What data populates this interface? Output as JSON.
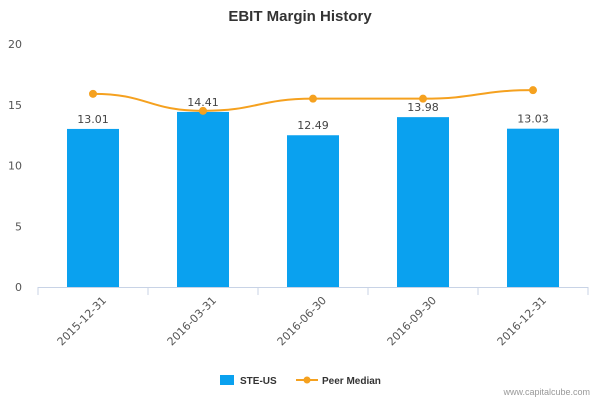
{
  "chart_data": {
    "type": "bar",
    "title": "EBIT Margin History",
    "xlabel": "",
    "ylabel": "",
    "categories": [
      "2015-12-31",
      "2016-03-31",
      "2016-06-30",
      "2016-09-30",
      "2016-12-31"
    ],
    "series": [
      {
        "name": "STE-US",
        "type": "bar",
        "color": "#0aa1ef",
        "values": [
          13.01,
          14.41,
          12.49,
          13.98,
          13.03
        ],
        "labels": [
          "13.01",
          "14.41",
          "12.49",
          "13.98",
          "13.03"
        ]
      },
      {
        "name": "Peer Median",
        "type": "line",
        "color": "#f5a11f",
        "values": [
          15.9,
          14.5,
          15.5,
          15.5,
          16.2
        ]
      }
    ],
    "ylim": [
      0,
      20
    ],
    "yticks": [
      "0",
      "5",
      "10",
      "15",
      "20"
    ],
    "grid": false,
    "legend_position": "bottom-center"
  },
  "credit": "www.capitalcube.com"
}
